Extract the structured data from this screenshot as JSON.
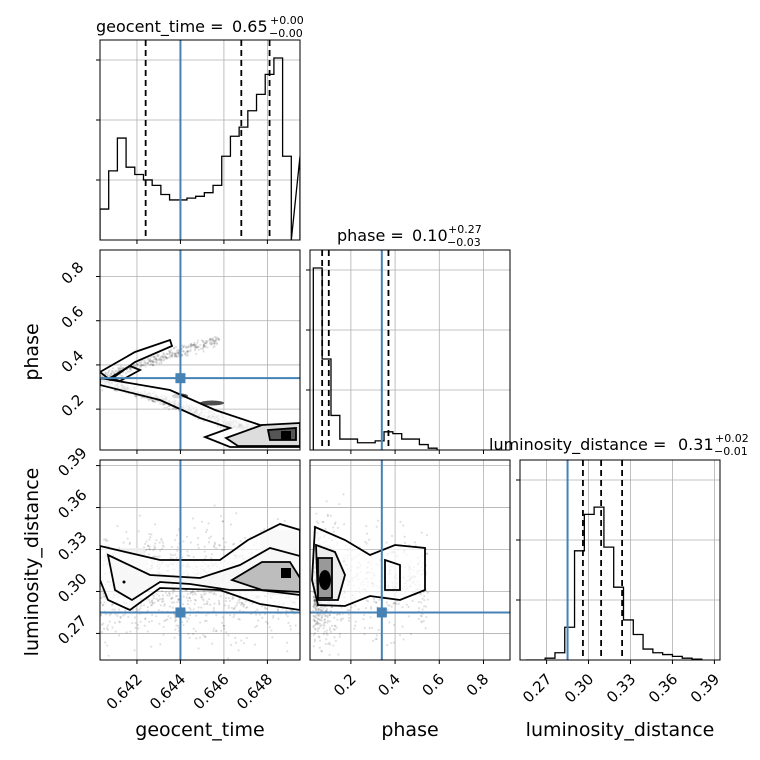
{
  "chart_data": {
    "type": "corner",
    "parameters": [
      "geocent_time",
      "phase",
      "luminosity_distance"
    ],
    "truth": {
      "geocent_time": 0.644,
      "phase": 0.34,
      "luminosity_distance": 0.285
    },
    "titles": {
      "geocent_time": {
        "label": "geocent_time = ",
        "median": "0.65",
        "plus": "+0.00",
        "minus": "−0.00"
      },
      "phase": {
        "label": "phase = ",
        "median": "0.10",
        "plus": "+0.27",
        "minus": "−0.03"
      },
      "luminosity_distance": {
        "label": "luminosity_distance = ",
        "median": "0.31",
        "plus": "+0.02",
        "minus": "−0.01"
      }
    },
    "axes": {
      "geocent_time": {
        "range": [
          0.6403,
          0.6495
        ],
        "ticks": [
          0.642,
          0.644,
          0.646,
          0.648
        ],
        "tick_labels": [
          "0.642",
          "0.644",
          "0.646",
          "0.648"
        ],
        "label": "geocent_time"
      },
      "phase": {
        "range": [
          0.015,
          0.92
        ],
        "ticks": [
          0.2,
          0.4,
          0.6,
          0.8
        ],
        "tick_labels": [
          "0.2",
          "0.4",
          "0.6",
          "0.8"
        ],
        "label": "phase"
      },
      "luminosity_distance": {
        "range": [
          0.251,
          0.394
        ],
        "ticks": [
          0.27,
          0.3,
          0.33,
          0.36,
          0.39
        ],
        "tick_labels": [
          "0.27",
          "0.30",
          "0.33",
          "0.36",
          "0.39"
        ],
        "label": "luminosity_distance"
      }
    },
    "histograms": {
      "geocent_time": {
        "edges": [
          0.6403,
          0.6407,
          0.6411,
          0.6415,
          0.6419,
          0.6423,
          0.6427,
          0.6431,
          0.6435,
          0.6439,
          0.6443,
          0.6447,
          0.6451,
          0.6455,
          0.6459,
          0.6463,
          0.6467,
          0.6471,
          0.6475,
          0.6479,
          0.6483,
          0.6487,
          0.6491
        ],
        "counts": [
          0.17,
          0.38,
          0.56,
          0.4,
          0.36,
          0.33,
          0.3,
          0.25,
          0.22,
          0.22,
          0.23,
          0.24,
          0.26,
          0.3,
          0.46,
          0.57,
          0.62,
          0.71,
          0.8,
          0.91,
          1.0,
          0.46
        ],
        "quantiles": [
          0.6424,
          0.6468,
          0.6481
        ]
      },
      "phase": {
        "edges": [
          0.03,
          0.07,
          0.11,
          0.15,
          0.19,
          0.23,
          0.27,
          0.31,
          0.35,
          0.39,
          0.43,
          0.47,
          0.51,
          0.55,
          0.59
        ],
        "counts": [
          1.0,
          0.5,
          0.19,
          0.06,
          0.06,
          0.04,
          0.04,
          0.05,
          0.1,
          0.09,
          0.06,
          0.06,
          0.03,
          0.01
        ],
        "quantiles": [
          0.07,
          0.1,
          0.37
        ]
      },
      "luminosity_distance": {
        "edges": [
          0.255,
          0.262,
          0.269,
          0.276,
          0.283,
          0.29,
          0.297,
          0.304,
          0.311,
          0.318,
          0.325,
          0.332,
          0.339,
          0.346,
          0.353,
          0.36,
          0.367,
          0.374,
          0.381
        ],
        "counts": [
          0.0,
          0.0,
          0.01,
          0.04,
          0.18,
          0.6,
          0.8,
          0.84,
          0.62,
          0.4,
          0.22,
          0.14,
          0.06,
          0.04,
          0.03,
          0.02,
          0.01,
          0.005
        ],
        "quantiles": [
          0.296,
          0.309,
          0.324
        ]
      }
    },
    "grid": true,
    "legend": "none"
  }
}
